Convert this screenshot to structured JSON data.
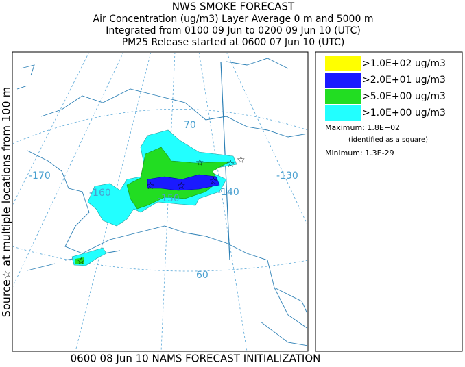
{
  "header": {
    "lines": [
      "NWS SMOKE FORECAST",
      "Air Concentration (ug/m3) Layer Average    0 m and  5000 m",
      "Integrated from 0100 09 Jun to 0200 09 Jun 10 (UTC)",
      "PM25 Release started at 0600 07 Jun 10 (UTC)"
    ]
  },
  "side_label": "Source☆ at multiple locations   from   100 m",
  "footer": "0600 08 Jun 10 NAMS FORECAST INITIALIZATION",
  "map": {
    "labels": [
      {
        "text": "70",
        "pos": "lat70"
      },
      {
        "text": "-170",
        "pos": "lon170"
      },
      {
        "text": "-160",
        "pos": "lon160"
      },
      {
        "text": "-150",
        "pos": "lon150"
      },
      {
        "text": "-140",
        "pos": "lon140"
      },
      {
        "text": "-130",
        "pos": "lon130"
      },
      {
        "text": "60",
        "pos": "lat60"
      }
    ]
  },
  "legend": {
    "items": [
      {
        "label": ">1.0E+02 ug/m3",
        "color": "#ffff00"
      },
      {
        "label": ">2.0E+01 ug/m3",
        "color": "#1a1aff"
      },
      {
        "label": ">5.0E+00 ug/m3",
        "color": "#22dd22"
      },
      {
        "label": ">1.0E+00 ug/m3",
        "color": "#22ffff"
      }
    ],
    "maximum": "Maximum: 1.8E+02",
    "maximum_note": "(identified as a square)",
    "minimum": "Minimum: 1.3E-29"
  }
}
